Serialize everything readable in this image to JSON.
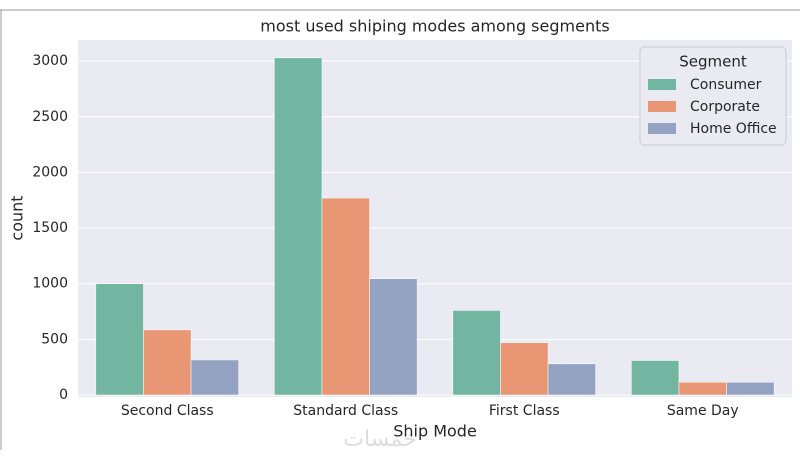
{
  "chart_data": {
    "type": "bar",
    "title": "most used shiping modes among segments",
    "x_label": "Ship Mode",
    "y_label": "count",
    "categories": [
      "Second Class",
      "Standard Class",
      "First Class",
      "Same Day"
    ],
    "series": [
      {
        "name": "Consumer",
        "color": "#72b6a1",
        "values": [
          1000,
          3030,
          760,
          310
        ]
      },
      {
        "name": "Corporate",
        "color": "#e99675",
        "values": [
          585,
          1770,
          470,
          115
        ]
      },
      {
        "name": "Home Office",
        "color": "#95a3c3",
        "values": [
          315,
          1045,
          280,
          115
        ]
      }
    ],
    "legend_title": "Segment",
    "legend": "upper right",
    "ylim": [
      0,
      3190
    ],
    "yticks": [
      0,
      500,
      1000,
      1500,
      2000,
      2500,
      3000
    ],
    "grid": true,
    "watermark": "خمسات"
  }
}
